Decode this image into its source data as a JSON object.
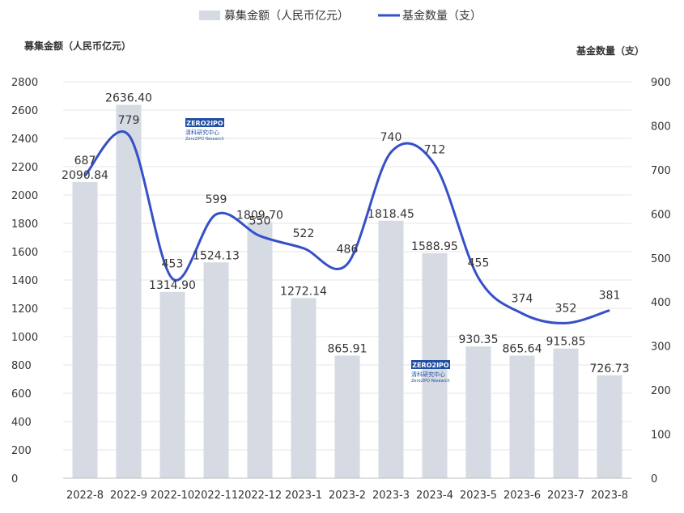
{
  "legend": {
    "bar_label": "募集金额（人民币亿元）",
    "line_label": "基金数量（支）"
  },
  "watermark": {
    "logo_text": "ZERO2IPO",
    "cn_text": "清科研究中心",
    "en_text": "Zero2IPO Research"
  },
  "colors": {
    "bar": "#d5dae3",
    "line": "#3550c8",
    "grid": "#e6e6e6",
    "text": "#333333",
    "watermark": "#1f4ea3"
  },
  "chart_data": {
    "type": "bar",
    "categories": [
      "2022-8",
      "2022-9",
      "2022-10",
      "2022-11",
      "2022-12",
      "2023-1",
      "2023-2",
      "2023-3",
      "2023-4",
      "2023-5",
      "2023-6",
      "2023-7",
      "2023-8"
    ],
    "series": [
      {
        "name": "募集金额（人民币亿元）",
        "type": "bar",
        "axis": "left",
        "values": [
          2090.84,
          2636.4,
          1314.9,
          1524.13,
          1809.7,
          1272.14,
          865.91,
          1818.45,
          1588.95,
          930.35,
          865.64,
          915.85,
          726.73
        ],
        "labels": [
          "2090.84",
          "2636.40",
          "1314.90",
          "1524.13",
          "1809.70",
          "1272.14",
          "865.91",
          "1818.45",
          "1588.95",
          "930.35",
          "865.64",
          "915.85",
          "726.73"
        ]
      },
      {
        "name": "基金数量（支）",
        "type": "line",
        "axis": "right",
        "smooth": true,
        "values": [
          687,
          779,
          453,
          599,
          550,
          522,
          486,
          740,
          712,
          455,
          374,
          352,
          381
        ],
        "labels": [
          "687",
          "779",
          "453",
          "599",
          "550",
          "522",
          "486",
          "740",
          "712",
          "455",
          "374",
          "352",
          "381"
        ]
      }
    ],
    "y_left": {
      "label": "募集金额（人民币亿元）",
      "range": [
        0,
        2800
      ],
      "ticks": [
        "0",
        "200",
        "400",
        "600",
        "800",
        "1000",
        "1200",
        "1400",
        "1600",
        "1800",
        "2000",
        "2200",
        "2400",
        "2600",
        "2800"
      ]
    },
    "y_right": {
      "label": "基金数量（支）",
      "range": [
        0,
        900
      ],
      "ticks": [
        "0",
        "100",
        "200",
        "300",
        "400",
        "500",
        "600",
        "700",
        "800",
        "900"
      ]
    },
    "grid": true,
    "legend_position": "top-center"
  }
}
